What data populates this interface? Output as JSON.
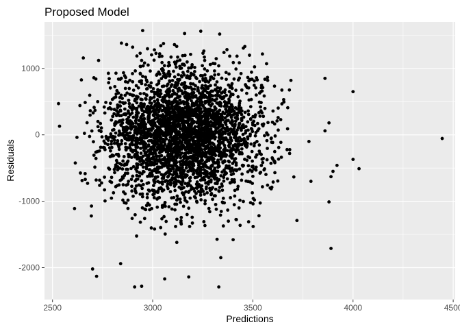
{
  "chart_data": {
    "type": "scatter",
    "title": "Proposed Model",
    "xlabel": "Predictions",
    "ylabel": "Residuals",
    "xlim": [
      2460,
      4510
    ],
    "ylim": [
      -2480,
      1700
    ],
    "x_ticks": [
      2500,
      3000,
      3500,
      4000,
      4500
    ],
    "y_ticks": [
      1000,
      0,
      -1000,
      -2000
    ],
    "x_tick_labels": [
      "2500",
      "3000",
      "3500",
      "4000",
      "4500"
    ],
    "y_tick_labels": [
      "1000",
      "0",
      "-1000",
      "-2000"
    ],
    "grid": true,
    "legend": "none",
    "panel_background": "#ebebeb",
    "grid_major_color": "#ffffff",
    "point_color": "#000000",
    "generated_cloud": {
      "count": 3200,
      "x_mean": 3150,
      "x_sd": 195,
      "y_mean": 0,
      "y_sd": 500,
      "x_min": 2600,
      "x_max": 3720,
      "y_min": -2300,
      "y_max": 1560,
      "seed": 7
    },
    "points": [
      {
        "x": 2530,
        "y": 470
      },
      {
        "x": 2535,
        "y": 130
      },
      {
        "x": 2610,
        "y": -1110
      },
      {
        "x": 2700,
        "y": -2020
      },
      {
        "x": 2720,
        "y": -2130
      },
      {
        "x": 2730,
        "y": 1120
      },
      {
        "x": 2840,
        "y": -1940
      },
      {
        "x": 2870,
        "y": 1360
      },
      {
        "x": 2900,
        "y": 1320
      },
      {
        "x": 2910,
        "y": -2290
      },
      {
        "x": 2945,
        "y": -2280
      },
      {
        "x": 2950,
        "y": 1570
      },
      {
        "x": 3060,
        "y": -2170
      },
      {
        "x": 3180,
        "y": -2140
      },
      {
        "x": 3240,
        "y": 1560
      },
      {
        "x": 3330,
        "y": -2290
      },
      {
        "x": 3340,
        "y": -1850
      },
      {
        "x": 3460,
        "y": 1330
      },
      {
        "x": 3690,
        "y": 820
      },
      {
        "x": 3720,
        "y": -1290
      },
      {
        "x": 3780,
        "y": -100
      },
      {
        "x": 3790,
        "y": -700
      },
      {
        "x": 3860,
        "y": 850
      },
      {
        "x": 3860,
        "y": 60
      },
      {
        "x": 3880,
        "y": 180
      },
      {
        "x": 3880,
        "y": -1010
      },
      {
        "x": 3890,
        "y": -1710
      },
      {
        "x": 3890,
        "y": -630
      },
      {
        "x": 3900,
        "y": -550
      },
      {
        "x": 3920,
        "y": -460
      },
      {
        "x": 4000,
        "y": 650
      },
      {
        "x": 4000,
        "y": -370
      },
      {
        "x": 4030,
        "y": -510
      },
      {
        "x": 4445,
        "y": -55
      }
    ]
  }
}
